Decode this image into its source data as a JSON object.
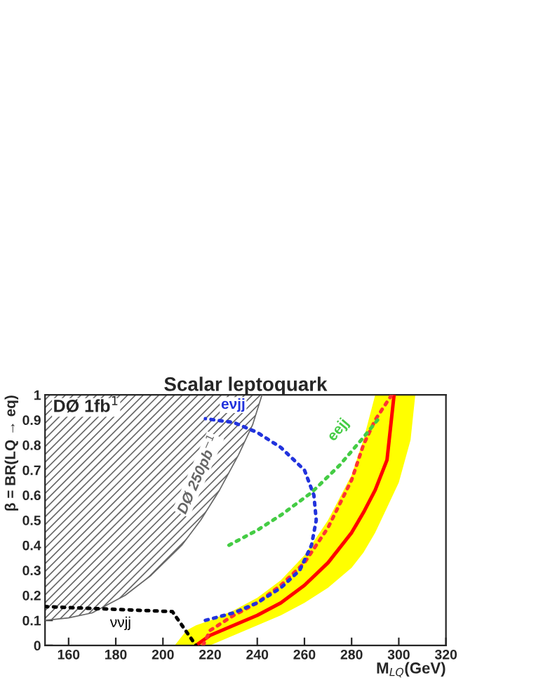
{
  "chart_data": {
    "type": "line",
    "title": "Scalar leptoquark",
    "xlabel": "M$_{LQ}$(GeV)",
    "ylabel": "β = BR(LQ → eq)",
    "annotations": [
      "DØ 1fb$^{1}$"
    ],
    "xlim": [
      150,
      320
    ],
    "xticks": [
      160,
      180,
      200,
      220,
      240,
      260,
      280,
      300,
      320
    ],
    "ylim": [
      0,
      1
    ],
    "yticks": [
      0,
      0.1,
      0.2,
      0.3,
      0.4,
      0.5,
      0.6,
      0.7,
      0.8,
      0.9,
      1
    ],
    "series": [
      {
        "color": "#666666",
        "line_style": "solid",
        "name": "DØ 250pb$^{−1}$",
        "x": [
          150,
          160,
          170,
          184,
          195,
          208,
          216,
          224,
          232,
          238,
          242
        ],
        "values": [
          0.1,
          0.11,
          0.13,
          0.2,
          0.28,
          0.4,
          0.5,
          0.62,
          0.76,
          0.88,
          1.0
        ],
        "lower": [
          0.1,
          0.11,
          0.13,
          0.2,
          0.28,
          0.4,
          0.5,
          0.62,
          0.76,
          0.88,
          1.0
        ],
        "upper": [
          1,
          1,
          1,
          1,
          1,
          1,
          1,
          1,
          1,
          1,
          1
        ]
      },
      {
        "color": "#ff0000",
        "line_style": "solid",
        "x": [
          205,
          210,
          214,
          220,
          230,
          240,
          250,
          260,
          270,
          280,
          285,
          290,
          295,
          298,
          300,
          305,
          307
        ],
        "values": [
          null,
          null,
          0,
          0.04,
          0.08,
          0.12,
          0.17,
          0.24,
          0.33,
          0.45,
          0.53,
          0.62,
          0.74,
          1.0,
          null,
          null,
          null
        ],
        "lower": [
          0,
          0,
          0,
          0,
          0.04,
          0.08,
          0.12,
          0.17,
          0.23,
          0.31,
          0.37,
          0.45,
          0.55,
          0.61,
          0.65,
          0.82,
          1.0
        ],
        "upper": [
          0,
          0.06,
          0.08,
          0.1,
          0.14,
          0.19,
          0.26,
          0.36,
          0.5,
          0.68,
          0.82,
          1.0,
          1.0,
          1.0,
          1.0,
          1.0,
          1.0
        ]
      },
      {
        "color": "#ff3333",
        "line_style": "dotted",
        "x": [
          217,
          220,
          230,
          240,
          250,
          260,
          270,
          280,
          285,
          290,
          297
        ],
        "values": [
          0,
          0.06,
          0.12,
          0.17,
          0.24,
          0.33,
          0.47,
          0.66,
          0.8,
          0.9,
          1.0
        ]
      },
      {
        "color": "#2233dd",
        "line_style": "dotted",
        "name": "eνjj",
        "x": [
          218,
          230,
          240,
          250,
          258,
          263,
          265,
          264,
          260,
          250,
          240,
          230,
          218
        ],
        "values": [
          0.1,
          0.13,
          0.17,
          0.23,
          0.3,
          0.4,
          0.5,
          0.6,
          0.7,
          0.79,
          0.85,
          0.89,
          0.905
        ]
      },
      {
        "color": "#44cc44",
        "line_style": "dotted",
        "name": "eejj",
        "x": [
          228,
          240,
          250,
          263,
          275,
          285,
          291
        ],
        "values": [
          0.4,
          0.46,
          0.52,
          0.61,
          0.72,
          0.83,
          0.9
        ]
      },
      {
        "color": "#000000",
        "line_style": "dotted",
        "name": "ννjj",
        "x": [
          150,
          204,
          214
        ],
        "values": [
          0.155,
          0.135,
          0
        ]
      }
    ]
  }
}
